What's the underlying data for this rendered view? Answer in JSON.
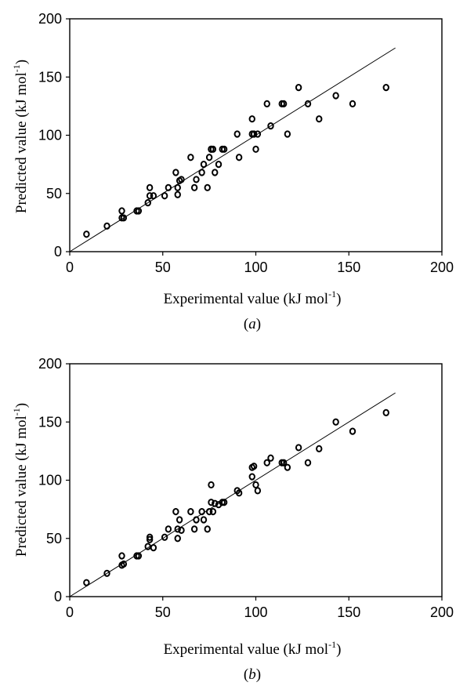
{
  "chart_data": [
    {
      "type": "scatter",
      "panel_label": "a",
      "xlabel": "Experimental value (kJ mol",
      "ylabel": "Predicted value (kJ mol",
      "unit_superscript": "-1",
      "xlim": [
        0,
        200
      ],
      "ylim": [
        0,
        200
      ],
      "xticks": [
        "0",
        "50",
        "100",
        "150",
        "200"
      ],
      "yticks": [
        "0",
        "50",
        "100",
        "150",
        "200"
      ],
      "grid": false,
      "legend": "none",
      "reference_line": {
        "from": [
          0,
          0
        ],
        "to": [
          175,
          175
        ]
      },
      "series": [
        {
          "marker": "open-circle",
          "x": [
            9,
            20,
            28,
            28,
            29,
            36,
            37,
            42,
            43,
            43,
            45,
            51,
            53,
            57,
            58,
            58,
            59,
            60,
            65,
            67,
            68,
            71,
            72,
            74,
            75,
            76,
            76,
            77,
            78,
            80,
            82,
            83,
            90,
            91,
            98,
            98,
            99,
            100,
            101,
            106,
            108,
            114,
            115,
            117,
            123,
            128,
            134,
            143,
            152,
            170
          ],
          "y": [
            15,
            22,
            29,
            35,
            29,
            35,
            35,
            42,
            48,
            55,
            48,
            48,
            55,
            68,
            49,
            55,
            61,
            62,
            81,
            55,
            62,
            68,
            75,
            55,
            81,
            88,
            88,
            88,
            68,
            75,
            88,
            88,
            101,
            81,
            101,
            114,
            101,
            88,
            101,
            127,
            108,
            127,
            127,
            101,
            141,
            127,
            114,
            134,
            127,
            141
          ]
        }
      ]
    },
    {
      "type": "scatter",
      "panel_label": "b",
      "xlabel": "Experimental value (kJ mol",
      "ylabel": "Predicted value (kJ mol",
      "unit_superscript": "-1",
      "xlim": [
        0,
        200
      ],
      "ylim": [
        0,
        200
      ],
      "xticks": [
        "0",
        "50",
        "100",
        "150",
        "200"
      ],
      "yticks": [
        "0",
        "50",
        "100",
        "150",
        "200"
      ],
      "grid": false,
      "legend": "none",
      "reference_line": {
        "from": [
          0,
          0
        ],
        "to": [
          175,
          175
        ]
      },
      "series": [
        {
          "marker": "open-circle",
          "x": [
            9,
            20,
            28,
            28,
            29,
            36,
            37,
            42,
            43,
            43,
            45,
            51,
            53,
            57,
            58,
            58,
            59,
            60,
            65,
            67,
            68,
            71,
            72,
            74,
            75,
            76,
            76,
            77,
            78,
            80,
            82,
            83,
            90,
            91,
            98,
            98,
            99,
            100,
            101,
            106,
            108,
            114,
            115,
            117,
            123,
            128,
            134,
            143,
            152,
            170
          ],
          "y": [
            12,
            20,
            35,
            27,
            28,
            35,
            35,
            43,
            49,
            51,
            42,
            51,
            58,
            73,
            50,
            58,
            66,
            57,
            73,
            58,
            66,
            73,
            66,
            58,
            73,
            96,
            81,
            73,
            80,
            79,
            81,
            81,
            91,
            89,
            103,
            111,
            112,
            96,
            91,
            115,
            119,
            115,
            115,
            111,
            128,
            115,
            127,
            150,
            142,
            158
          ]
        }
      ]
    }
  ]
}
